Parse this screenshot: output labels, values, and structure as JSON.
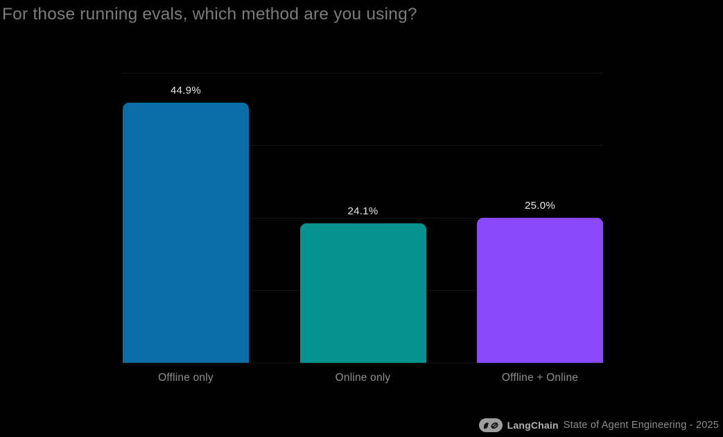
{
  "chart_data": {
    "type": "bar",
    "title": "For those running evals, which method are you using?",
    "categories": [
      "Offline only",
      "Online only",
      "Offline + Online"
    ],
    "values": [
      44.9,
      24.1,
      25.0
    ],
    "value_labels": [
      "44.9%",
      "24.1%",
      "25.0%"
    ],
    "bar_colors": [
      "#0a6da6",
      "#069390",
      "#8a49fb"
    ],
    "xlabel": "",
    "ylabel": "",
    "ylim": [
      0,
      50
    ],
    "gridline_values": [
      0,
      12.5,
      25,
      37.5,
      50
    ],
    "grid": "horizontal-only",
    "legend": "none",
    "background": "#000000"
  },
  "footer": {
    "brand": "LangChain",
    "caption": "State of Agent Engineering - 2025",
    "logo_icon": "langchain-parrot-chainlink-icon"
  },
  "colors": {
    "background": "#000000",
    "title_text": "#7c7c7c",
    "value_label_text": "#e8e8e8",
    "category_label_text": "#909090",
    "gridline": "#151515",
    "brand_text": "#b3b3b3",
    "caption_text": "#8c8c8c",
    "logo_pill": "#9e9e9e"
  }
}
